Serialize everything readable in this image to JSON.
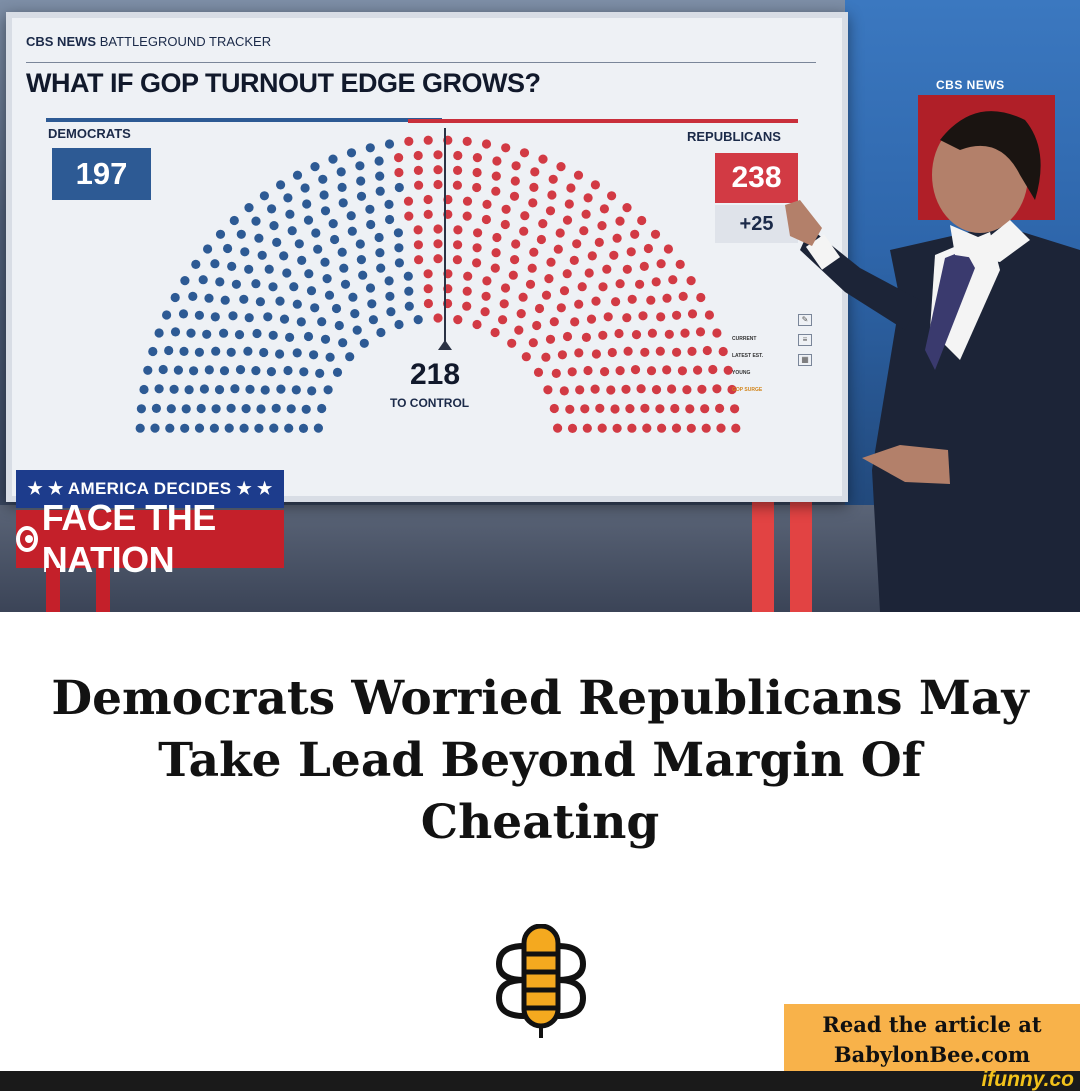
{
  "broadcast": {
    "tracker_brand": "CBS NEWS",
    "tracker_name": "BATTLEGROUND TRACKER",
    "title": "WHAT IF GOP TURNOUT EDGE GROWS?",
    "democrats_label": "DEMOCRATS",
    "democrats_seats": "197",
    "republicans_label": "REPUBLICANS",
    "republicans_seats": "238",
    "republicans_change": "+25",
    "control_threshold": "218",
    "control_label": "TO CONTROL",
    "scenarios": [
      "CURRENT",
      "LATEST EST.",
      "YOUNG",
      "GOP SURGE"
    ],
    "studio_logo": "CBS NEWS",
    "lower_third_top": "★ ★ AMERICA DECIDES ★ ★",
    "lower_third_show": "FACE THE NATION",
    "colors": {
      "democrats": "#2d5a94",
      "republicans": "#d23a44"
    }
  },
  "meme": {
    "headline": "Democrats Worried Republicans May Take Lead Beyond Margin Of Cheating",
    "promo_line1": "Read the article at",
    "promo_line2": "BabylonBee.com",
    "watermark": "ifunny.co",
    "logo_icon": "babylon-bee-icon"
  }
}
